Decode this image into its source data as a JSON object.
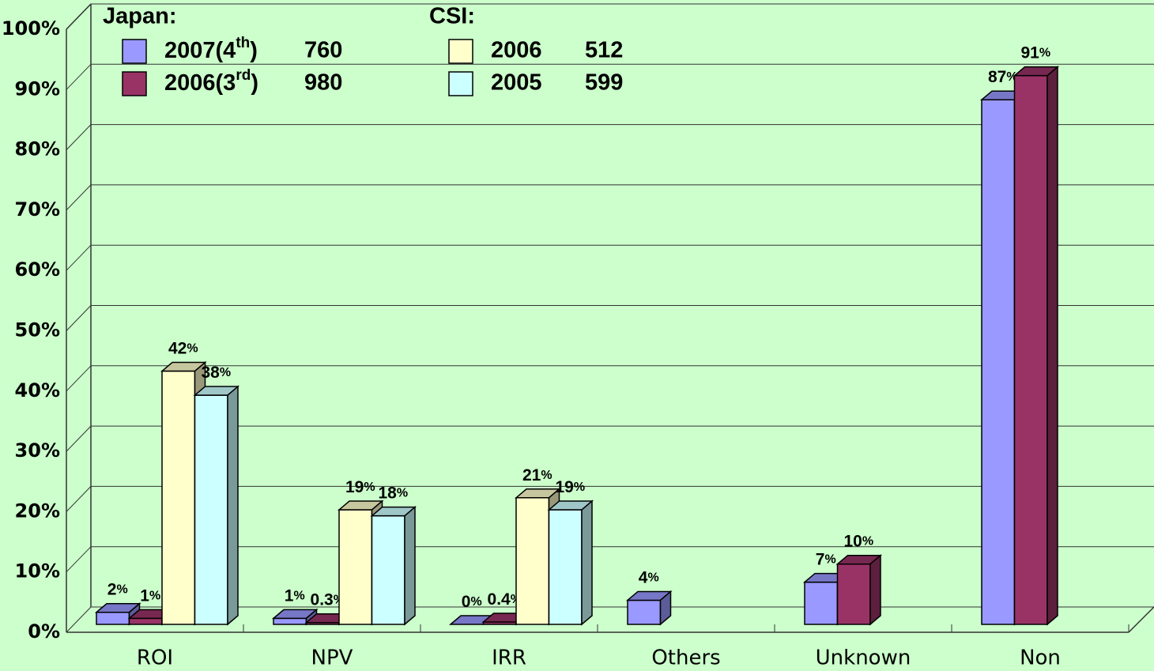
{
  "chart_data": {
    "type": "bar3d",
    "categories": [
      "ROI",
      "NPV",
      "IRR",
      "Others",
      "Unknown",
      "Non"
    ],
    "series_groups": [
      {
        "title": "Japan:",
        "series": [
          {
            "name": "2007(4th)",
            "n": 760,
            "color": "#9999ff",
            "values": [
              2,
              1,
              0,
              4,
              7,
              87
            ],
            "value_labels": [
              "2%",
              "1%",
              "0%",
              "4%",
              "7%",
              "87%"
            ]
          },
          {
            "name": "2006(3rd)",
            "n": 980,
            "color": "#993366",
            "values": [
              1,
              0.3,
              0.4,
              null,
              10,
              91
            ],
            "value_labels": [
              "1%",
              "0.3%",
              "0.4%",
              null,
              "10%",
              "91%"
            ]
          }
        ]
      },
      {
        "title": "CSI:",
        "series": [
          {
            "name": "2006",
            "n": 512,
            "color": "#ffffcc",
            "values": [
              42,
              19,
              21,
              null,
              null,
              null
            ],
            "value_labels": [
              "42%",
              "19%",
              "21%",
              null,
              null,
              null
            ]
          },
          {
            "name": "2005",
            "n": 599,
            "color": "#ccffff",
            "values": [
              38,
              18,
              19,
              null,
              null,
              null
            ],
            "value_labels": [
              "38%",
              "18%",
              "19%",
              null,
              null,
              null
            ]
          }
        ]
      }
    ],
    "ylim": [
      0,
      100
    ],
    "yticks": [
      {
        "value": 0,
        "label": "0%"
      },
      {
        "value": 10,
        "label": "10%"
      },
      {
        "value": 20,
        "label": "20%"
      },
      {
        "value": 30,
        "label": "30%"
      },
      {
        "value": 40,
        "label": "40%"
      },
      {
        "value": 50,
        "label": "50%"
      },
      {
        "value": 60,
        "label": "60%"
      },
      {
        "value": 70,
        "label": "70%"
      },
      {
        "value": 80,
        "label": "80%"
      },
      {
        "value": 90,
        "label": "90%"
      },
      {
        "value": 100,
        "label": "100%"
      }
    ],
    "grid": true
  }
}
